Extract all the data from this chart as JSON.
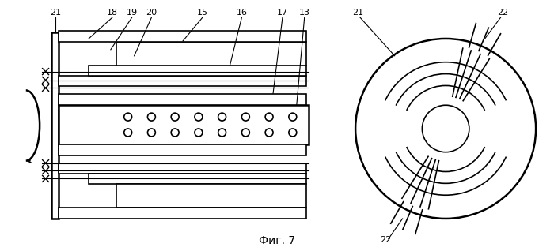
{
  "fig_label": "Фиг. 7",
  "bg_color": "#ffffff",
  "line_color": "#000000",
  "lw": 1.2,
  "lw2": 1.8,
  "lw_thin": 0.8
}
